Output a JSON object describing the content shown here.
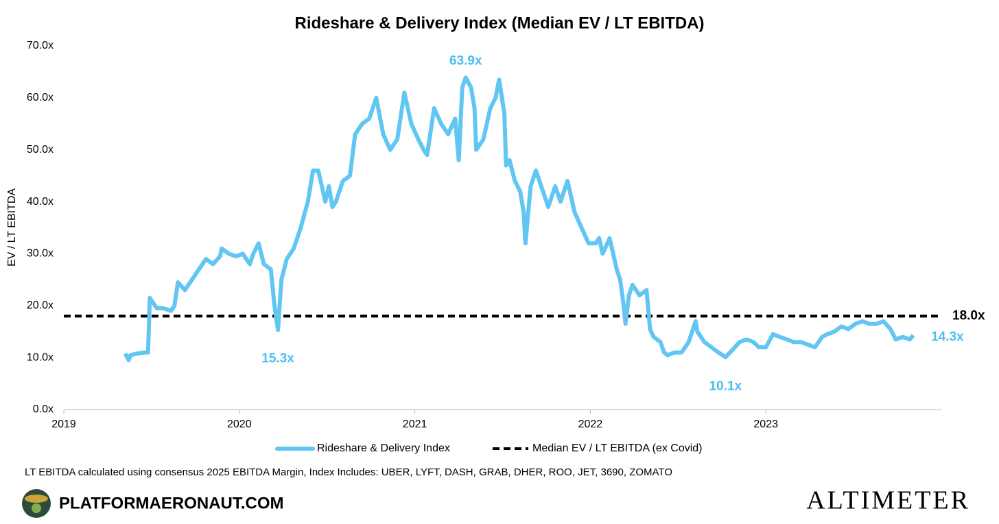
{
  "chart_data": {
    "type": "line",
    "title": "Rideshare & Delivery Index (Median EV / LT EBITDA)",
    "y_label": "EV / LT EBITDA",
    "xlim": [
      2019,
      2024
    ],
    "xticks": [
      2019,
      2020,
      2021,
      2022,
      2023
    ],
    "ylim": [
      0,
      70
    ],
    "yticks": [
      {
        "value": 0,
        "label": "0.0x"
      },
      {
        "value": 10,
        "label": "10.0x"
      },
      {
        "value": 20,
        "label": "20.0x"
      },
      {
        "value": 30,
        "label": "30.0x"
      },
      {
        "value": 40,
        "label": "40.0x"
      },
      {
        "value": 50,
        "label": "50.0x"
      },
      {
        "value": 60,
        "label": "60.0x"
      },
      {
        "value": 70,
        "label": "70.0x"
      }
    ],
    "series": [
      {
        "name": "Rideshare & Delivery Index",
        "color": "#62c6f2",
        "x": [
          2019.35,
          2019.37,
          2019.38,
          2019.42,
          2019.46,
          2019.48,
          2019.49,
          2019.53,
          2019.57,
          2019.61,
          2019.63,
          2019.65,
          2019.69,
          2019.73,
          2019.77,
          2019.81,
          2019.85,
          2019.89,
          2019.9,
          2019.94,
          2019.98,
          2020.02,
          2020.06,
          2020.08,
          2020.11,
          2020.14,
          2020.18,
          2020.2,
          2020.22,
          2020.24,
          2020.27,
          2020.31,
          2020.35,
          2020.39,
          2020.42,
          2020.45,
          2020.49,
          2020.51,
          2020.53,
          2020.55,
          2020.59,
          2020.63,
          2020.66,
          2020.7,
          2020.74,
          2020.78,
          2020.82,
          2020.86,
          2020.9,
          2020.94,
          2020.98,
          2021.02,
          2021.05,
          2021.07,
          2021.11,
          2021.15,
          2021.19,
          2021.23,
          2021.25,
          2021.27,
          2021.29,
          2021.32,
          2021.34,
          2021.35,
          2021.39,
          2021.43,
          2021.46,
          2021.48,
          2021.51,
          2021.52,
          2021.54,
          2021.57,
          2021.6,
          2021.62,
          2021.63,
          2021.66,
          2021.69,
          2021.72,
          2021.76,
          2021.8,
          2021.83,
          2021.87,
          2021.91,
          2021.95,
          2021.99,
          2022.03,
          2022.05,
          2022.07,
          2022.11,
          2022.13,
          2022.15,
          2022.17,
          2022.19,
          2022.2,
          2022.22,
          2022.24,
          2022.28,
          2022.32,
          2022.34,
          2022.36,
          2022.4,
          2022.42,
          2022.44,
          2022.48,
          2022.52,
          2022.56,
          2022.6,
          2022.61,
          2022.65,
          2022.69,
          2022.73,
          2022.77,
          2022.81,
          2022.85,
          2022.89,
          2022.93,
          2022.96,
          2023.0,
          2023.04,
          2023.08,
          2023.12,
          2023.16,
          2023.2,
          2023.24,
          2023.28,
          2023.32,
          2023.35,
          2023.39,
          2023.43,
          2023.47,
          2023.51,
          2023.55,
          2023.59,
          2023.63,
          2023.67,
          2023.71,
          2023.74,
          2023.78,
          2023.82,
          2023.84
        ],
        "values": [
          10.8,
          9.5,
          10.5,
          10.8,
          11,
          11,
          21.5,
          19.5,
          19.5,
          19,
          20,
          24.5,
          23,
          25,
          27,
          29,
          28,
          29.5,
          31,
          30,
          29.5,
          30,
          28,
          30,
          32,
          28,
          27,
          20,
          15.3,
          25,
          29,
          31,
          35,
          40,
          46,
          46,
          40,
          43,
          39,
          40,
          44,
          45,
          53,
          55,
          56,
          60,
          53,
          50,
          52,
          61,
          55,
          52,
          50,
          49,
          58,
          55,
          53,
          56,
          48,
          62,
          63.9,
          62,
          58,
          50,
          52,
          58,
          60,
          63.5,
          57,
          47,
          48,
          44,
          42,
          38,
          32,
          43,
          46,
          43,
          39,
          43,
          40,
          44,
          38,
          35,
          32,
          32,
          33,
          30,
          33,
          30,
          27,
          25,
          20,
          16.5,
          22,
          24,
          22,
          23,
          15.5,
          14,
          13,
          11,
          10.5,
          11,
          11,
          13,
          17,
          15,
          13,
          12,
          11,
          10.1,
          11.5,
          13,
          13.5,
          13,
          12,
          12,
          14.5,
          14,
          13.5,
          13,
          13,
          12.5,
          12,
          14,
          14.5,
          15,
          16,
          15.5,
          16.5,
          17,
          16.5,
          16.5,
          17,
          15.5,
          13.5,
          14,
          13.5,
          14.3
        ]
      }
    ],
    "reference_line": {
      "name": "Median EV / LT EBITDA (ex Covid)",
      "color": "#000000",
      "style": "dashed",
      "value": 18,
      "value_label": "18.0x"
    },
    "annotations": [
      {
        "label": "63.9x",
        "x": 2021.29,
        "value": 63.9
      },
      {
        "label": "15.3x",
        "x": 2020.22,
        "value": 15.3
      },
      {
        "label": "10.1x",
        "x": 2022.77,
        "value": 10.1
      },
      {
        "label": "14.3x",
        "x": 2023.84,
        "value": 14.3
      }
    ],
    "footnote": "LT EBITDA calculated using consensus 2025 EBITDA Margin, Index Includes: UBER, LYFT, DASH, GRAB, DHER, ROO, JET, 3690, ZOMATO",
    "source": "PLATFORMAERONAUT.COM",
    "brand": "ALTIMETER"
  }
}
